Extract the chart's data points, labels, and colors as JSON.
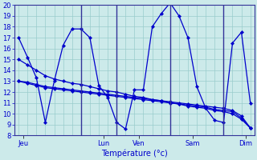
{
  "xlabel": "Température (°c)",
  "background_color": "#cceaea",
  "grid_color": "#99cccc",
  "line_color": "#0000cc",
  "sep_color": "#333399",
  "ylim": [
    8,
    20
  ],
  "yticks": [
    8,
    9,
    10,
    11,
    12,
    13,
    14,
    15,
    16,
    17,
    18,
    19,
    20
  ],
  "day_labels": [
    "Jeu",
    "Lun",
    "Ven",
    "Sam",
    "Dim"
  ],
  "day_x_positions": [
    0.5,
    9.5,
    13.5,
    19.5,
    25.5
  ],
  "vline_positions": [
    7,
    11,
    17,
    23
  ],
  "num_points": 27,
  "series": {
    "line_main": [
      17,
      15.2,
      13.3,
      9.2,
      13,
      16.3,
      17.8,
      17.8,
      17.0,
      12.6,
      11.5,
      9.2,
      8.6,
      12.2,
      12.2,
      18.0,
      19.2,
      20.2,
      19.0,
      17.0,
      12.5,
      10.5,
      9.4,
      9.2,
      16.5,
      17.5,
      11.0
    ],
    "line_trend1": [
      15.0,
      14.5,
      14.0,
      13.5,
      13.2,
      13.0,
      12.8,
      12.7,
      12.5,
      12.3,
      12.1,
      12.0,
      11.8,
      11.6,
      11.5,
      11.3,
      11.2,
      11.0,
      10.9,
      10.7,
      10.6,
      10.5,
      10.3,
      10.2,
      10.0,
      9.5,
      8.7
    ],
    "line_trend2": [
      13.0,
      12.9,
      12.7,
      12.5,
      12.4,
      12.3,
      12.2,
      12.1,
      12.0,
      11.9,
      11.8,
      11.7,
      11.6,
      11.5,
      11.4,
      11.3,
      11.2,
      11.1,
      11.0,
      10.9,
      10.8,
      10.7,
      10.6,
      10.5,
      10.3,
      9.8,
      8.7
    ],
    "line_trend3": [
      13.0,
      12.8,
      12.6,
      12.4,
      12.3,
      12.2,
      12.1,
      12.0,
      11.9,
      11.8,
      11.7,
      11.6,
      11.5,
      11.4,
      11.3,
      11.2,
      11.1,
      11.0,
      10.9,
      10.8,
      10.7,
      10.6,
      10.4,
      10.3,
      10.2,
      9.6,
      8.7
    ]
  }
}
